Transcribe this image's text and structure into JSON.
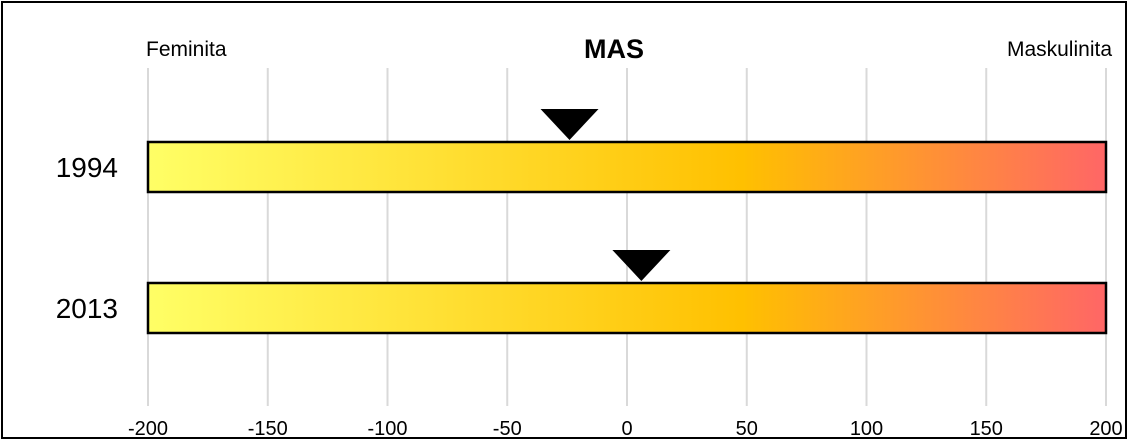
{
  "chart_data": {
    "type": "bar",
    "title": "MAS",
    "left_label": "Feminita",
    "right_label": "Maskulinita",
    "xlim": [
      -200,
      200
    ],
    "x_ticks": [
      -200,
      -150,
      -100,
      -50,
      0,
      50,
      100,
      150,
      200
    ],
    "grid": true,
    "categories": [
      "1994",
      "2013"
    ],
    "values": [
      -24,
      6
    ],
    "gradient_colors": [
      "#ffff66",
      "#ffc000",
      "#ff6666"
    ]
  }
}
